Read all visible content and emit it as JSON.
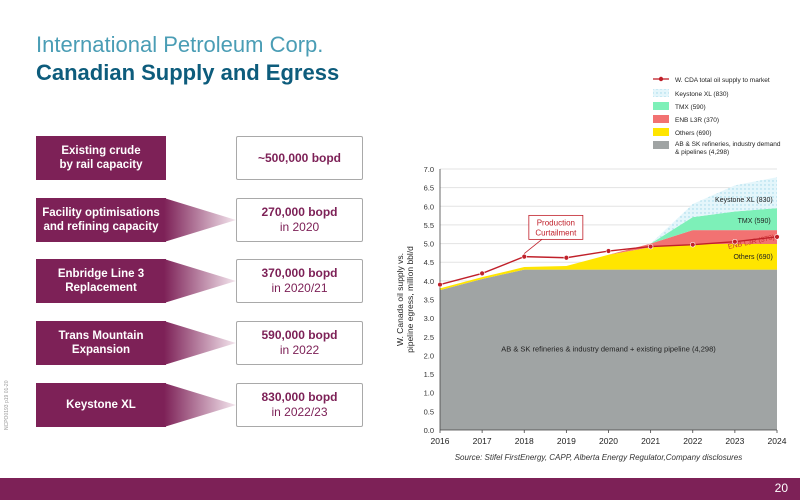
{
  "header": {
    "company": "International Petroleum Corp.",
    "title": "Canadian Supply and Egress"
  },
  "rows": [
    {
      "label": "Existing crude by rail capacity",
      "label_lines": [
        "Existing crude",
        "by rail capacity"
      ],
      "value": "~500,000 bopd",
      "sub": ""
    },
    {
      "label": "Facility optimisations and refining capacity",
      "label_lines": [
        "Facility optimisations",
        "and refining capacity"
      ],
      "value": "270,000 bopd",
      "sub": "in 2020"
    },
    {
      "label": "Enbridge Line 3 Replacement",
      "label_lines": [
        "Enbridge Line 3",
        "Replacement"
      ],
      "value": "370,000 bopd",
      "sub": "in 2020/21"
    },
    {
      "label": "Trans Mountain Expansion",
      "label_lines": [
        "Trans Mountain",
        "Expansion"
      ],
      "value": "590,000 bopd",
      "sub": "in 2022"
    },
    {
      "label": "Keystone XL",
      "label_lines": [
        "Keystone XL"
      ],
      "value": "830,000 bopd",
      "sub": "in 2022/23"
    }
  ],
  "footer": {
    "page": "20",
    "side_code": "NCPO0193  p19 01-20"
  },
  "colors": {
    "brand": "#7d2157",
    "title_light": "#4a9db5",
    "title_dark": "#0d5c7c",
    "base": "#a0a4a4",
    "others": "#ffe500",
    "enb": "#f27272",
    "tmx": "#7df0b8",
    "keystone": "#cfeff7",
    "supply": "#c0202a"
  },
  "chart_data": {
    "type": "area",
    "x": [
      2016,
      2017,
      2018,
      2019,
      2020,
      2021,
      2022,
      2023,
      2024
    ],
    "xlim": [
      2016,
      2024
    ],
    "ylim": [
      0,
      7
    ],
    "yticks": [
      "0.0",
      "0.5",
      "1.0",
      "1.5",
      "2.0",
      "2.5",
      "3.0",
      "3.5",
      "4.0",
      "4.5",
      "5.0",
      "5.5",
      "6.0",
      "6.5",
      "7.0"
    ],
    "ylabel": "W. Canada oil supply vs. pipeline egress, million bbl/d",
    "xlabel": "",
    "source": "Source: Stifel FirstEnergy, CAPP, Alberta Energy Regulator,Company disclosures",
    "stacked_areas": [
      {
        "name": "AB & SK refineries, industry demand & pipelines (4,298)",
        "label": "AB & SK refineries & industry demand + existing pipeline (4,298)",
        "color_key": "base",
        "values": [
          3.75,
          4.05,
          4.3,
          4.3,
          4.3,
          4.3,
          4.3,
          4.3,
          4.3
        ]
      },
      {
        "name": "Others (690)",
        "label": "Others (690)",
        "color_key": "others",
        "values": [
          0.05,
          0.05,
          0.07,
          0.1,
          0.4,
          0.6,
          0.69,
          0.69,
          0.69
        ]
      },
      {
        "name": "ENB L3R (370)",
        "label": "ENB L3R (370)",
        "color_key": "enb",
        "values": [
          0,
          0,
          0,
          0,
          0,
          0.1,
          0.37,
          0.37,
          0.37
        ]
      },
      {
        "name": "TMX (590)",
        "label": "TMX (590)",
        "color_key": "tmx",
        "values": [
          0,
          0,
          0,
          0,
          0,
          0,
          0.35,
          0.5,
          0.59
        ]
      },
      {
        "name": "Keystone XL (830)",
        "label": "Keystone XL (830)",
        "color_key": "keystone",
        "values": [
          0,
          0,
          0,
          0,
          0,
          0,
          0.35,
          0.7,
          0.83
        ]
      }
    ],
    "series": [
      {
        "name": "W. CDA total oil supply to market",
        "color_key": "supply",
        "values": [
          3.9,
          4.2,
          4.65,
          4.62,
          4.8,
          4.92,
          4.97,
          5.05,
          5.18
        ]
      }
    ],
    "annotations": [
      {
        "text_lines": [
          "Production",
          "Curtailment"
        ],
        "x": 2018.75,
        "y": 5.3
      }
    ],
    "legend_position": "top-right",
    "grid": true
  }
}
